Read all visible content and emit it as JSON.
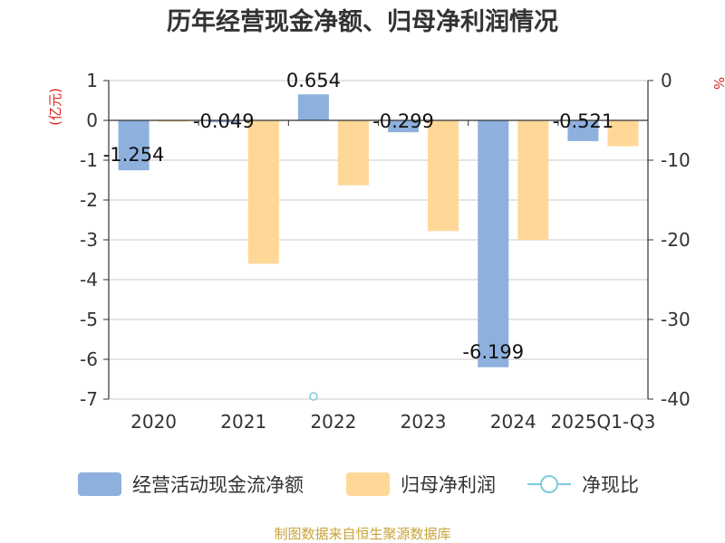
{
  "chart_data": {
    "type": "bar",
    "title": "历年经营现金净额、归母净利润情况",
    "categories": [
      "2020",
      "2021",
      "2022",
      "2023",
      "2024",
      "2025Q1-Q3"
    ],
    "left_axis": {
      "unit": "(亿元)",
      "ticks": [
        "1",
        "0",
        "-1",
        "-2",
        "-3",
        "-4",
        "-5",
        "-6",
        "-7"
      ],
      "ylim": [
        -7,
        1
      ]
    },
    "right_axis": {
      "unit": "%",
      "ticks": [
        "0",
        "-10",
        "-20",
        "-30",
        "-40"
      ],
      "ylim": [
        -40,
        0
      ]
    },
    "series": [
      {
        "name": "经营活动现金流净额",
        "color": "#8eb0dd",
        "axis": "left",
        "values": [
          -1.254,
          -0.049,
          0.654,
          -0.299,
          -6.199,
          -0.521
        ]
      },
      {
        "name": "归母净利润",
        "color": "#ffd898",
        "axis": "left",
        "values": [
          -0.01,
          -3.6,
          -1.63,
          -2.78,
          -3.0,
          -0.65
        ]
      },
      {
        "name": "净现比",
        "color": "#7ecbdc",
        "axis": "right",
        "values": [
          null,
          null,
          -40,
          null,
          null,
          null
        ]
      }
    ],
    "data_labels": [
      "-1.254",
      "-0.049",
      "0.654",
      "-0.299",
      "-6.199",
      "-0.521"
    ],
    "axis_label_color": "#dd2222",
    "source": "制图数据来自恒生聚源数据库",
    "source_color": "#c9a43a",
    "legend_position": "bottom"
  }
}
